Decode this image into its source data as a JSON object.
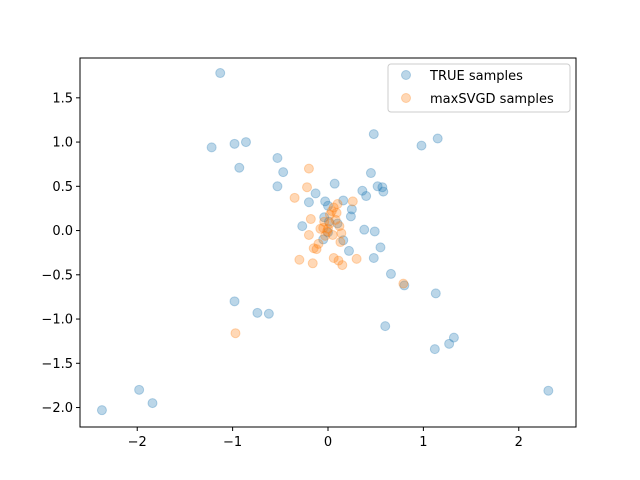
{
  "chart_data": {
    "type": "scatter",
    "title": "",
    "xlabel": "",
    "ylabel": "",
    "xlim": [
      -2.6,
      2.6
    ],
    "ylim": [
      -2.22,
      1.95
    ],
    "xticks": [
      -2,
      -1,
      0,
      1,
      2
    ],
    "xtick_labels": [
      "−2",
      "−1",
      "0",
      "1",
      "2"
    ],
    "yticks": [
      -2.0,
      -1.5,
      -1.0,
      -0.5,
      0.0,
      0.5,
      1.0,
      1.5
    ],
    "ytick_labels": [
      "−2.0",
      "−1.5",
      "−1.0",
      "−0.5",
      "0.0",
      "0.5",
      "1.0",
      "1.5"
    ],
    "grid": false,
    "legend_position": "top-right",
    "series": [
      {
        "name": "TRUE samples",
        "color": "#1f77b4",
        "alpha": 0.3,
        "points": [
          [
            -2.37,
            -2.03
          ],
          [
            -1.98,
            -1.8
          ],
          [
            -1.84,
            -1.95
          ],
          [
            -1.13,
            1.78
          ],
          [
            -1.22,
            0.94
          ],
          [
            -0.98,
            0.98
          ],
          [
            -0.86,
            1.0
          ],
          [
            -0.93,
            0.71
          ],
          [
            -0.53,
            0.82
          ],
          [
            -0.47,
            0.66
          ],
          [
            -0.53,
            0.5
          ],
          [
            -0.98,
            -0.8
          ],
          [
            -0.74,
            -0.93
          ],
          [
            -0.62,
            -0.94
          ],
          [
            -0.27,
            0.05
          ],
          [
            -0.2,
            0.32
          ],
          [
            -0.13,
            0.42
          ],
          [
            -0.03,
            0.33
          ],
          [
            0.0,
            0.28
          ],
          [
            0.07,
            0.53
          ],
          [
            -0.04,
            0.15
          ],
          [
            0.01,
            0.1
          ],
          [
            -0.05,
            -0.1
          ],
          [
            0.0,
            -0.02
          ],
          [
            0.1,
            0.08
          ],
          [
            0.16,
            0.34
          ],
          [
            0.25,
            0.24
          ],
          [
            0.24,
            0.16
          ],
          [
            0.16,
            -0.11
          ],
          [
            0.22,
            -0.23
          ],
          [
            0.38,
            0.01
          ],
          [
            0.36,
            0.45
          ],
          [
            0.4,
            0.39
          ],
          [
            0.45,
            0.65
          ],
          [
            0.48,
            1.09
          ],
          [
            0.52,
            0.5
          ],
          [
            0.57,
            0.49
          ],
          [
            0.58,
            0.44
          ],
          [
            0.49,
            -0.01
          ],
          [
            0.55,
            -0.19
          ],
          [
            0.48,
            -0.31
          ],
          [
            0.66,
            -0.49
          ],
          [
            0.6,
            -1.08
          ],
          [
            0.8,
            -0.62
          ],
          [
            0.98,
            0.96
          ],
          [
            1.15,
            1.04
          ],
          [
            1.13,
            -0.71
          ],
          [
            1.12,
            -1.34
          ],
          [
            1.27,
            -1.28
          ],
          [
            1.32,
            -1.21
          ],
          [
            2.31,
            -1.81
          ]
        ]
      },
      {
        "name": "maxSVGD samples",
        "color": "#ff7f0e",
        "alpha": 0.3,
        "points": [
          [
            -0.97,
            -1.16
          ],
          [
            -0.35,
            0.37
          ],
          [
            -0.3,
            -0.33
          ],
          [
            -0.2,
            0.7
          ],
          [
            -0.22,
            0.49
          ],
          [
            -0.15,
            -0.2
          ],
          [
            -0.16,
            -0.37
          ],
          [
            -0.2,
            -0.05
          ],
          [
            -0.18,
            0.13
          ],
          [
            -0.1,
            -0.15
          ],
          [
            -0.08,
            0.02
          ],
          [
            -0.05,
            0.03
          ],
          [
            -0.04,
            0.1
          ],
          [
            -0.03,
            -0.06
          ],
          [
            0.0,
            0.02
          ],
          [
            0.02,
            0.18
          ],
          [
            0.04,
            0.22
          ],
          [
            0.06,
            0.26
          ],
          [
            0.05,
            -0.05
          ],
          [
            0.06,
            -0.31
          ],
          [
            0.09,
            0.2
          ],
          [
            0.1,
            0.3
          ],
          [
            0.11,
            -0.34
          ],
          [
            0.13,
            -0.13
          ],
          [
            0.15,
            -0.39
          ],
          [
            0.14,
            -0.03
          ],
          [
            0.08,
            0.12
          ],
          [
            0.26,
            0.33
          ],
          [
            0.3,
            -0.32
          ],
          [
            0.02,
            0.08
          ],
          [
            -0.01,
            -0.01
          ],
          [
            0.12,
            0.05
          ],
          [
            -0.12,
            -0.21
          ],
          [
            0.79,
            -0.6
          ]
        ]
      }
    ]
  }
}
